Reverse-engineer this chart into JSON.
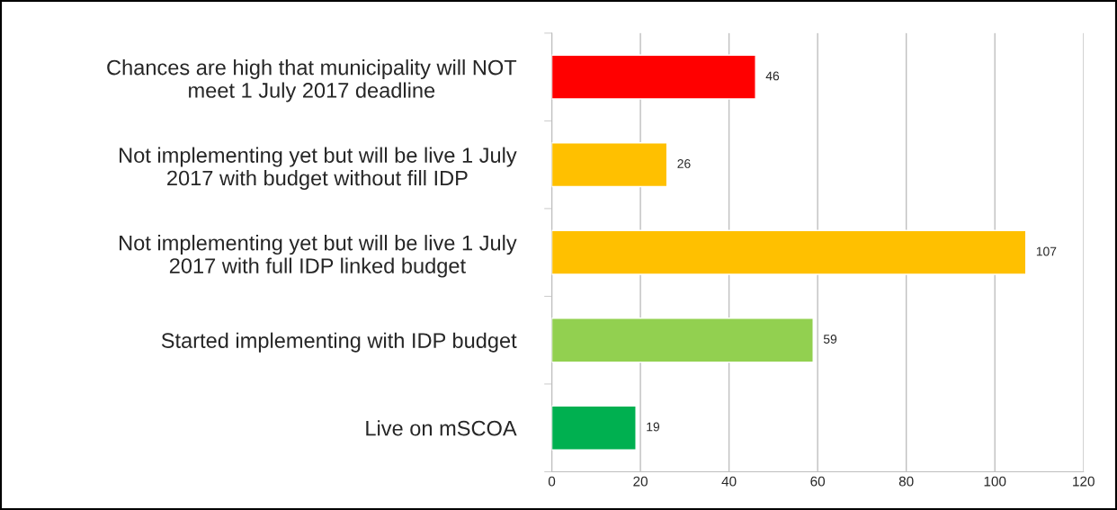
{
  "chart_data": {
    "type": "bar",
    "orientation": "horizontal",
    "categories": [
      "Chances are high that municipality will NOT\nmeet 1 July 2017 deadline",
      "Not implementing yet but will be live 1 July\n2017 with budget without fill IDP",
      "Not implementing yet but will be live 1 July\n2017 with full IDP linked budget",
      "Started implementing with IDP budget",
      "Live on mSCOA"
    ],
    "values": [
      46,
      26,
      107,
      59,
      19
    ],
    "colors": [
      "#ff0000",
      "#ffc000",
      "#ffc000",
      "#92d050",
      "#00b050"
    ],
    "xlim": [
      0,
      120
    ],
    "xticks": [
      0,
      20,
      40,
      60,
      80,
      100,
      120
    ],
    "grid": "x",
    "data_labels": true,
    "legend": false
  }
}
